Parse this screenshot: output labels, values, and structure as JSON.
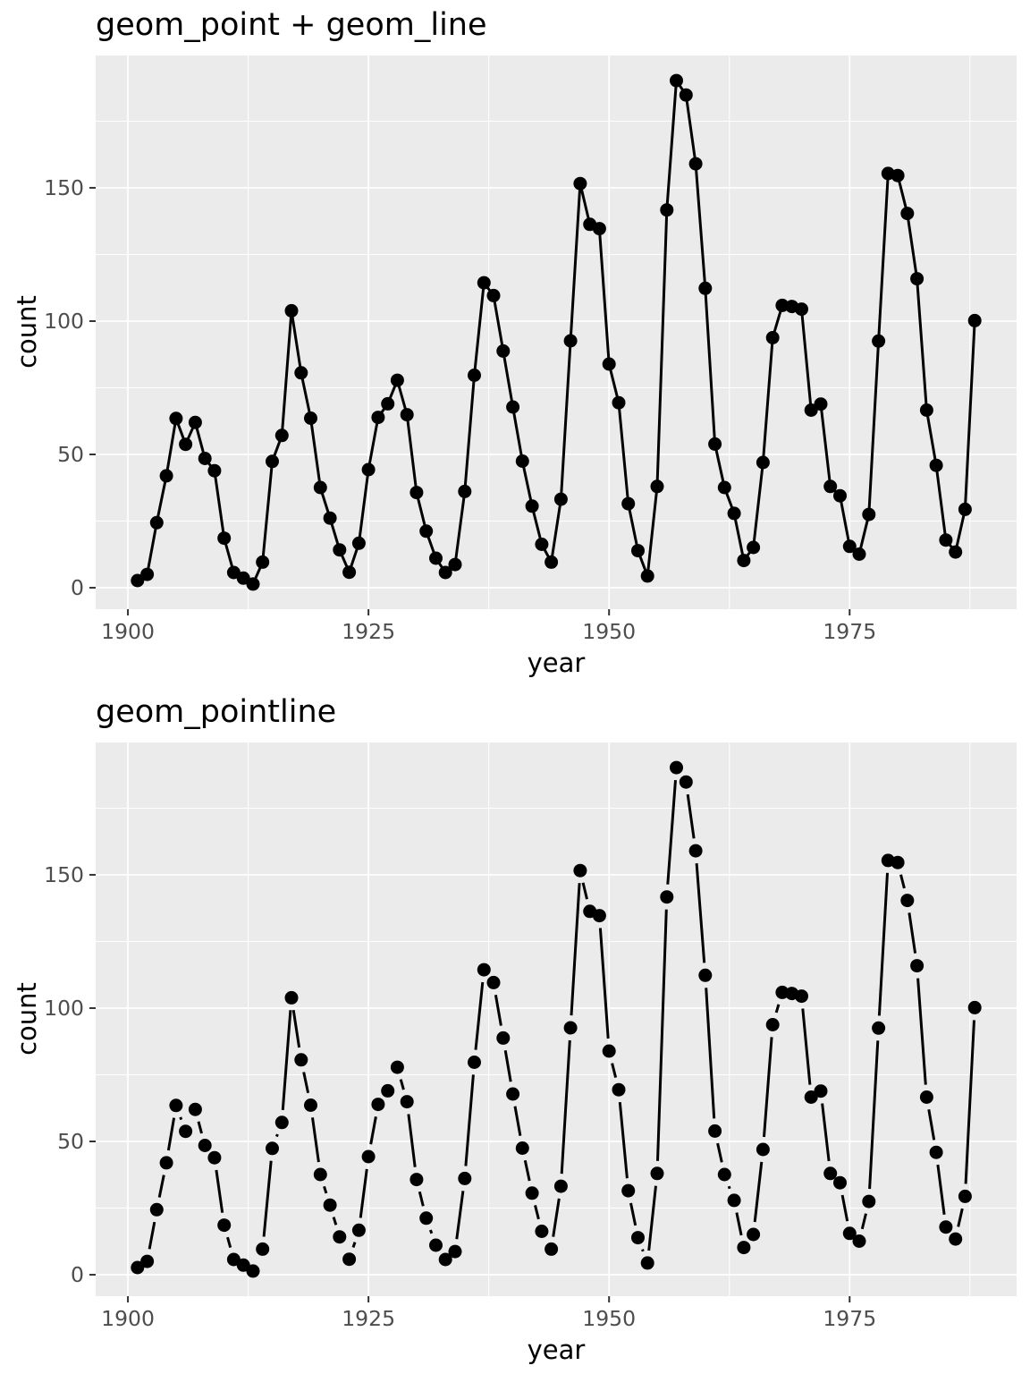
{
  "colors": {
    "background": "#FFFFFF",
    "panel_background": "#EBEBEB",
    "grid": "#FFFFFF",
    "series": "#000000",
    "axis_text": "#4D4D4D",
    "tick_mark": "#333333",
    "title_text": "#000000"
  },
  "chart_data": [
    {
      "type": "line",
      "title": "geom_point + geom_line",
      "xlabel": "year",
      "ylabel": "count",
      "line_style": "solid-through-points",
      "points": true,
      "legend": "none",
      "grid": "on",
      "x_breaks": [
        1900,
        1925,
        1950,
        1975
      ],
      "x_minor_breaks": [
        1912.5,
        1937.5,
        1962.5,
        1987.5
      ],
      "y_breaks": [
        0,
        50,
        100,
        150
      ],
      "y_minor_breaks": [
        25,
        75,
        125,
        175
      ],
      "xlim": [
        1896.65,
        1992.35
      ],
      "ylim": [
        -8.04,
        199.64
      ],
      "x": [
        1901,
        1902,
        1903,
        1904,
        1905,
        1906,
        1907,
        1908,
        1909,
        1910,
        1911,
        1912,
        1913,
        1914,
        1915,
        1916,
        1917,
        1918,
        1919,
        1920,
        1921,
        1922,
        1923,
        1924,
        1925,
        1926,
        1927,
        1928,
        1929,
        1930,
        1931,
        1932,
        1933,
        1934,
        1935,
        1936,
        1937,
        1938,
        1939,
        1940,
        1941,
        1942,
        1943,
        1944,
        1945,
        1946,
        1947,
        1948,
        1949,
        1950,
        1951,
        1952,
        1953,
        1954,
        1955,
        1956,
        1957,
        1958,
        1959,
        1960,
        1961,
        1962,
        1963,
        1964,
        1965,
        1966,
        1967,
        1968,
        1969,
        1970,
        1971,
        1972,
        1973,
        1974,
        1975,
        1976,
        1977,
        1978,
        1979,
        1980,
        1981,
        1982,
        1983,
        1984,
        1985,
        1986,
        1987,
        1988
      ],
      "values": [
        2.7,
        5.0,
        24.4,
        42.0,
        63.5,
        53.8,
        62.0,
        48.5,
        43.9,
        18.6,
        5.7,
        3.6,
        1.4,
        9.6,
        47.4,
        57.1,
        103.9,
        80.6,
        63.6,
        37.6,
        26.1,
        14.2,
        5.8,
        16.7,
        44.3,
        63.9,
        69.0,
        77.8,
        64.9,
        35.7,
        21.2,
        11.1,
        5.7,
        8.7,
        36.1,
        79.7,
        114.4,
        109.6,
        88.8,
        67.8,
        47.5,
        30.6,
        16.3,
        9.6,
        33.2,
        92.6,
        151.6,
        136.3,
        134.7,
        83.9,
        69.4,
        31.5,
        13.9,
        4.4,
        38.0,
        141.7,
        190.2,
        184.8,
        159.0,
        112.3,
        53.9,
        37.6,
        27.9,
        10.2,
        15.1,
        47.0,
        93.8,
        105.9,
        105.5,
        104.5,
        66.6,
        68.9,
        38.0,
        34.5,
        15.5,
        12.6,
        27.5,
        92.5,
        155.4,
        154.6,
        140.4,
        115.9,
        66.6,
        45.9,
        17.9,
        13.4,
        29.4,
        100.2
      ]
    },
    {
      "type": "line",
      "title": "geom_pointline",
      "xlabel": "year",
      "ylabel": "count",
      "line_style": "segments-with-gaps-around-points",
      "points": true,
      "legend": "none",
      "grid": "on",
      "x_breaks": [
        1900,
        1925,
        1950,
        1975
      ],
      "x_minor_breaks": [
        1912.5,
        1937.5,
        1962.5,
        1987.5
      ],
      "y_breaks": [
        0,
        50,
        100,
        150
      ],
      "y_minor_breaks": [
        25,
        75,
        125,
        175
      ],
      "xlim": [
        1896.65,
        1992.35
      ],
      "ylim": [
        -8.04,
        199.64
      ],
      "x": [
        1901,
        1902,
        1903,
        1904,
        1905,
        1906,
        1907,
        1908,
        1909,
        1910,
        1911,
        1912,
        1913,
        1914,
        1915,
        1916,
        1917,
        1918,
        1919,
        1920,
        1921,
        1922,
        1923,
        1924,
        1925,
        1926,
        1927,
        1928,
        1929,
        1930,
        1931,
        1932,
        1933,
        1934,
        1935,
        1936,
        1937,
        1938,
        1939,
        1940,
        1941,
        1942,
        1943,
        1944,
        1945,
        1946,
        1947,
        1948,
        1949,
        1950,
        1951,
        1952,
        1953,
        1954,
        1955,
        1956,
        1957,
        1958,
        1959,
        1960,
        1961,
        1962,
        1963,
        1964,
        1965,
        1966,
        1967,
        1968,
        1969,
        1970,
        1971,
        1972,
        1973,
        1974,
        1975,
        1976,
        1977,
        1978,
        1979,
        1980,
        1981,
        1982,
        1983,
        1984,
        1985,
        1986,
        1987,
        1988
      ],
      "values": [
        2.7,
        5.0,
        24.4,
        42.0,
        63.5,
        53.8,
        62.0,
        48.5,
        43.9,
        18.6,
        5.7,
        3.6,
        1.4,
        9.6,
        47.4,
        57.1,
        103.9,
        80.6,
        63.6,
        37.6,
        26.1,
        14.2,
        5.8,
        16.7,
        44.3,
        63.9,
        69.0,
        77.8,
        64.9,
        35.7,
        21.2,
        11.1,
        5.7,
        8.7,
        36.1,
        79.7,
        114.4,
        109.6,
        88.8,
        67.8,
        47.5,
        30.6,
        16.3,
        9.6,
        33.2,
        92.6,
        151.6,
        136.3,
        134.7,
        83.9,
        69.4,
        31.5,
        13.9,
        4.4,
        38.0,
        141.7,
        190.2,
        184.8,
        159.0,
        112.3,
        53.9,
        37.6,
        27.9,
        10.2,
        15.1,
        47.0,
        93.8,
        105.9,
        105.5,
        104.5,
        66.6,
        68.9,
        38.0,
        34.5,
        15.5,
        12.6,
        27.5,
        92.5,
        155.4,
        154.6,
        140.4,
        115.9,
        66.6,
        45.9,
        17.9,
        13.4,
        29.4,
        100.2
      ]
    }
  ]
}
